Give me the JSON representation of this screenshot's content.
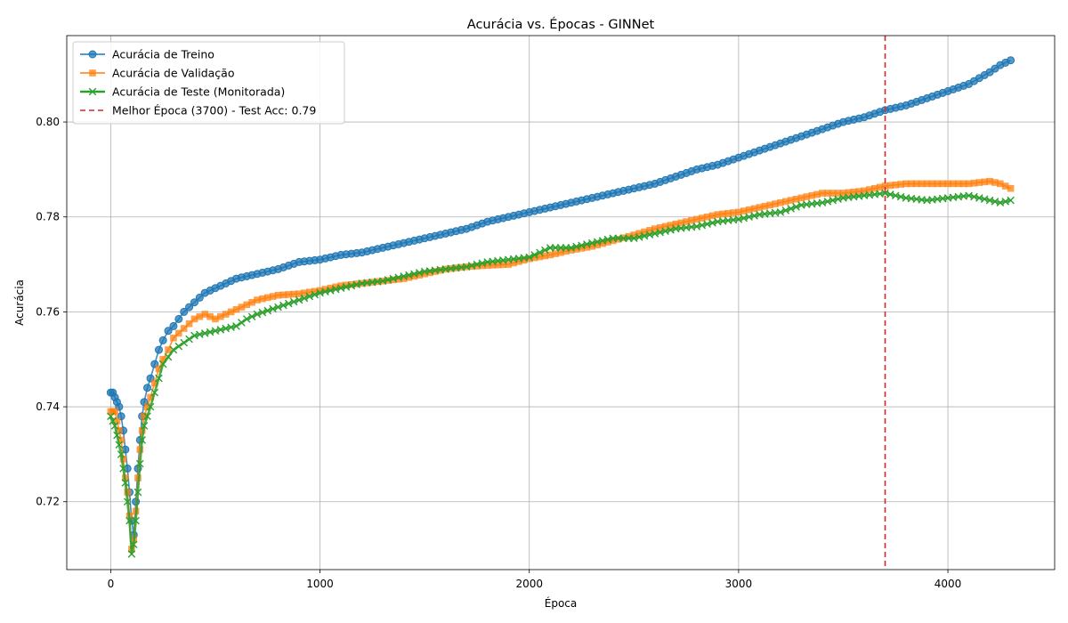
{
  "chart_data": {
    "type": "line",
    "title": "Acurácia vs. Épocas - GINNet",
    "xlabel": "Época",
    "ylabel": "Acurácia",
    "xlim": [
      -210,
      4510
    ],
    "ylim": [
      0.7057,
      0.8182
    ],
    "xticks": [
      0,
      1000,
      2000,
      3000,
      4000
    ],
    "xtick_labels": [
      "0",
      "1000",
      "2000",
      "3000",
      "4000"
    ],
    "yticks": [
      0.72,
      0.74,
      0.76,
      0.78,
      0.8
    ],
    "ytick_labels": [
      "0.72",
      "0.74",
      "0.76",
      "0.78",
      "0.80"
    ],
    "grid": true,
    "legend_position": "upper-left",
    "best_epoch": {
      "x": 3700,
      "label": "Melhor Época (3700) - Test Acc: 0.79",
      "color": "#d62728"
    },
    "series": [
      {
        "name": "Acurácia de Treino",
        "color": "#1f77b4",
        "marker": "circle",
        "points": [
          [
            0,
            0.743
          ],
          [
            10,
            0.743
          ],
          [
            20,
            0.742
          ],
          [
            30,
            0.741
          ],
          [
            40,
            0.74
          ],
          [
            50,
            0.738
          ],
          [
            60,
            0.735
          ],
          [
            70,
            0.731
          ],
          [
            80,
            0.727
          ],
          [
            90,
            0.722
          ],
          [
            100,
            0.716
          ],
          [
            110,
            0.713
          ],
          [
            120,
            0.72
          ],
          [
            130,
            0.727
          ],
          [
            140,
            0.733
          ],
          [
            150,
            0.738
          ],
          [
            160,
            0.741
          ],
          [
            175,
            0.744
          ],
          [
            190,
            0.746
          ],
          [
            210,
            0.749
          ],
          [
            230,
            0.752
          ],
          [
            250,
            0.754
          ],
          [
            275,
            0.756
          ],
          [
            300,
            0.757
          ],
          [
            350,
            0.76
          ],
          [
            400,
            0.762
          ],
          [
            450,
            0.764
          ],
          [
            500,
            0.765
          ],
          [
            550,
            0.766
          ],
          [
            600,
            0.767
          ],
          [
            650,
            0.7675
          ],
          [
            700,
            0.768
          ],
          [
            800,
            0.769
          ],
          [
            900,
            0.7705
          ],
          [
            1000,
            0.771
          ],
          [
            1100,
            0.772
          ],
          [
            1200,
            0.7725
          ],
          [
            1300,
            0.7735
          ],
          [
            1400,
            0.7745
          ],
          [
            1500,
            0.7755
          ],
          [
            1600,
            0.7765
          ],
          [
            1700,
            0.7775
          ],
          [
            1800,
            0.779
          ],
          [
            1900,
            0.78
          ],
          [
            2000,
            0.781
          ],
          [
            2100,
            0.782
          ],
          [
            2200,
            0.783
          ],
          [
            2300,
            0.784
          ],
          [
            2400,
            0.785
          ],
          [
            2500,
            0.786
          ],
          [
            2600,
            0.787
          ],
          [
            2700,
            0.7885
          ],
          [
            2800,
            0.79
          ],
          [
            2900,
            0.791
          ],
          [
            3000,
            0.7925
          ],
          [
            3100,
            0.794
          ],
          [
            3200,
            0.7955
          ],
          [
            3300,
            0.797
          ],
          [
            3400,
            0.7985
          ],
          [
            3500,
            0.8
          ],
          [
            3600,
            0.801
          ],
          [
            3700,
            0.8025
          ],
          [
            3800,
            0.8035
          ],
          [
            3900,
            0.805
          ],
          [
            4000,
            0.8065
          ],
          [
            4100,
            0.808
          ],
          [
            4200,
            0.8105
          ],
          [
            4250,
            0.812
          ],
          [
            4300,
            0.813
          ]
        ]
      },
      {
        "name": "Acurácia de Validação",
        "color": "#ff7f0e",
        "marker": "square",
        "points": [
          [
            0,
            0.739
          ],
          [
            10,
            0.739
          ],
          [
            20,
            0.739
          ],
          [
            30,
            0.737
          ],
          [
            40,
            0.735
          ],
          [
            50,
            0.733
          ],
          [
            60,
            0.729
          ],
          [
            70,
            0.725
          ],
          [
            80,
            0.722
          ],
          [
            90,
            0.717
          ],
          [
            100,
            0.71
          ],
          [
            110,
            0.712
          ],
          [
            120,
            0.718
          ],
          [
            130,
            0.725
          ],
          [
            140,
            0.731
          ],
          [
            150,
            0.735
          ],
          [
            160,
            0.738
          ],
          [
            175,
            0.74
          ],
          [
            190,
            0.742
          ],
          [
            210,
            0.745
          ],
          [
            230,
            0.748
          ],
          [
            250,
            0.75
          ],
          [
            275,
            0.752
          ],
          [
            300,
            0.7545
          ],
          [
            350,
            0.7565
          ],
          [
            400,
            0.7585
          ],
          [
            450,
            0.7595
          ],
          [
            500,
            0.7585
          ],
          [
            550,
            0.7595
          ],
          [
            600,
            0.7605
          ],
          [
            650,
            0.7615
          ],
          [
            700,
            0.7625
          ],
          [
            800,
            0.7635
          ],
          [
            900,
            0.7638
          ],
          [
            1000,
            0.7645
          ],
          [
            1100,
            0.7655
          ],
          [
            1200,
            0.766
          ],
          [
            1300,
            0.7665
          ],
          [
            1400,
            0.767
          ],
          [
            1500,
            0.768
          ],
          [
            1600,
            0.769
          ],
          [
            1700,
            0.7695
          ],
          [
            1800,
            0.7698
          ],
          [
            1900,
            0.77
          ],
          [
            2000,
            0.7712
          ],
          [
            2100,
            0.772
          ],
          [
            2200,
            0.773
          ],
          [
            2300,
            0.7738
          ],
          [
            2400,
            0.775
          ],
          [
            2500,
            0.7762
          ],
          [
            2600,
            0.7775
          ],
          [
            2700,
            0.7785
          ],
          [
            2800,
            0.7795
          ],
          [
            2900,
            0.7805
          ],
          [
            3000,
            0.781
          ],
          [
            3100,
            0.782
          ],
          [
            3200,
            0.783
          ],
          [
            3300,
            0.784
          ],
          [
            3400,
            0.785
          ],
          [
            3500,
            0.785
          ],
          [
            3600,
            0.7855
          ],
          [
            3700,
            0.7865
          ],
          [
            3800,
            0.787
          ],
          [
            3900,
            0.787
          ],
          [
            4000,
            0.787
          ],
          [
            4100,
            0.787
          ],
          [
            4200,
            0.7875
          ],
          [
            4250,
            0.787
          ],
          [
            4300,
            0.786
          ]
        ]
      },
      {
        "name": "Acurácia de Teste (Monitorada)",
        "color": "#2ca02c",
        "marker": "x",
        "points": [
          [
            0,
            0.738
          ],
          [
            10,
            0.737
          ],
          [
            20,
            0.736
          ],
          [
            30,
            0.734
          ],
          [
            40,
            0.732
          ],
          [
            50,
            0.73
          ],
          [
            60,
            0.727
          ],
          [
            70,
            0.724
          ],
          [
            80,
            0.72
          ],
          [
            90,
            0.716
          ],
          [
            100,
            0.709
          ],
          [
            110,
            0.711
          ],
          [
            120,
            0.716
          ],
          [
            130,
            0.722
          ],
          [
            140,
            0.728
          ],
          [
            150,
            0.733
          ],
          [
            160,
            0.736
          ],
          [
            175,
            0.738
          ],
          [
            190,
            0.74
          ],
          [
            210,
            0.743
          ],
          [
            230,
            0.746
          ],
          [
            250,
            0.749
          ],
          [
            275,
            0.7505
          ],
          [
            300,
            0.752
          ],
          [
            350,
            0.7535
          ],
          [
            400,
            0.755
          ],
          [
            450,
            0.7555
          ],
          [
            500,
            0.756
          ],
          [
            550,
            0.7565
          ],
          [
            600,
            0.757
          ],
          [
            650,
            0.7585
          ],
          [
            700,
            0.7595
          ],
          [
            800,
            0.761
          ],
          [
            900,
            0.7625
          ],
          [
            1000,
            0.764
          ],
          [
            1100,
            0.765
          ],
          [
            1200,
            0.766
          ],
          [
            1300,
            0.7665
          ],
          [
            1400,
            0.7675
          ],
          [
            1500,
            0.7685
          ],
          [
            1600,
            0.769
          ],
          [
            1700,
            0.7695
          ],
          [
            1800,
            0.7705
          ],
          [
            1900,
            0.771
          ],
          [
            2000,
            0.7715
          ],
          [
            2100,
            0.7735
          ],
          [
            2200,
            0.7735
          ],
          [
            2300,
            0.7745
          ],
          [
            2400,
            0.7755
          ],
          [
            2500,
            0.7755
          ],
          [
            2600,
            0.7765
          ],
          [
            2700,
            0.7775
          ],
          [
            2800,
            0.778
          ],
          [
            2900,
            0.779
          ],
          [
            3000,
            0.7795
          ],
          [
            3100,
            0.7805
          ],
          [
            3200,
            0.781
          ],
          [
            3300,
            0.7825
          ],
          [
            3400,
            0.783
          ],
          [
            3500,
            0.784
          ],
          [
            3600,
            0.7845
          ],
          [
            3700,
            0.785
          ],
          [
            3800,
            0.784
          ],
          [
            3900,
            0.7835
          ],
          [
            4000,
            0.784
          ],
          [
            4100,
            0.7845
          ],
          [
            4200,
            0.7835
          ],
          [
            4250,
            0.783
          ],
          [
            4300,
            0.7835
          ]
        ]
      }
    ]
  }
}
